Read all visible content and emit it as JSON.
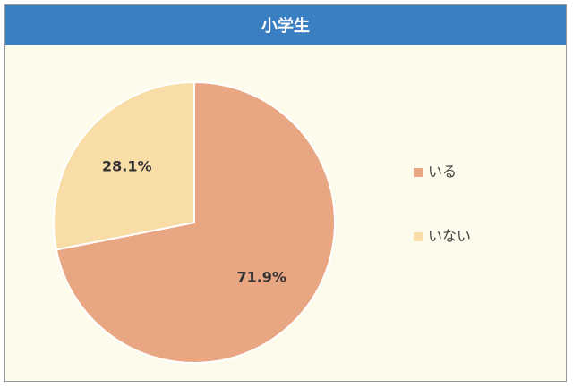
{
  "chart_data": {
    "type": "pie",
    "title": "小学生",
    "categories": [
      "いる",
      "いない"
    ],
    "values": [
      71.9,
      28.1
    ],
    "value_labels": [
      "71.9%",
      "28.1%"
    ],
    "colors": [
      "#e9a682",
      "#f8dda7"
    ]
  }
}
